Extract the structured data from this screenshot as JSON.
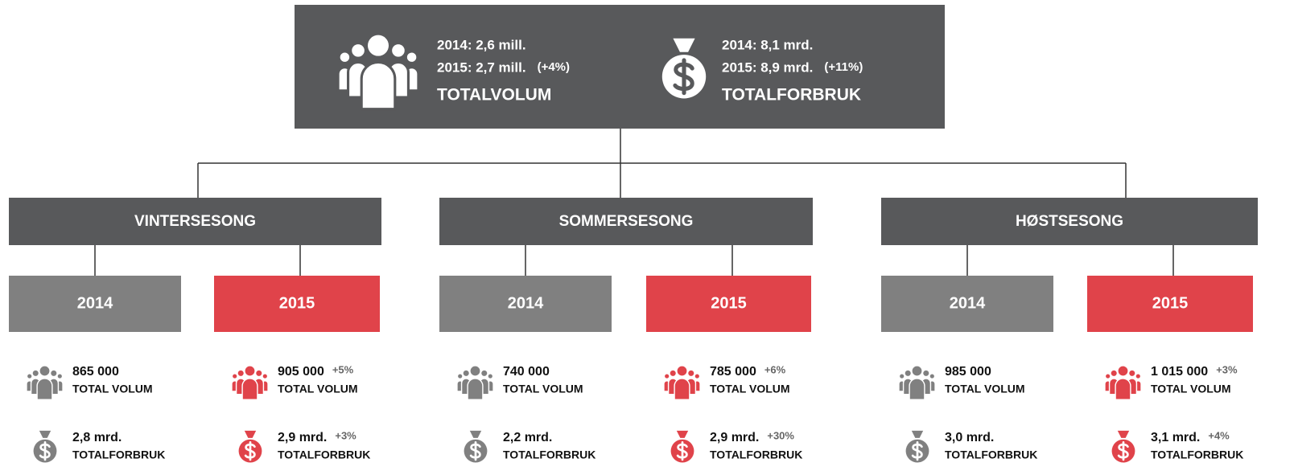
{
  "top": {
    "volume": {
      "line1": "2014: 2,6 mill.",
      "line2": "2015: 2,7 mill.",
      "change": "(+4%)",
      "label": "TOTALVOLUM"
    },
    "spend": {
      "line1": "2014: 8,1 mrd.",
      "line2": "2015: 8,9 mrd.",
      "change": "(+11%)",
      "label": "TOTALFORBRUK"
    }
  },
  "seasons": [
    {
      "name": "VINTERSESONG",
      "years": [
        {
          "year": "2014",
          "volume": "865 000",
          "volume_label": "TOTAL VOLUM",
          "spend": "2,8 mrd.",
          "spend_label": "TOTALFORBRUK"
        },
        {
          "year": "2015",
          "volume": "905 000",
          "volume_change": "+5%",
          "volume_label": "TOTAL VOLUM",
          "spend": "2,9 mrd.",
          "spend_change": "+3%",
          "spend_label": "TOTALFORBRUK"
        }
      ]
    },
    {
      "name": "SOMMERSESONG",
      "years": [
        {
          "year": "2014",
          "volume": "740 000",
          "volume_label": "TOTAL VOLUM",
          "spend": "2,2 mrd.",
          "spend_label": "TOTALFORBRUK"
        },
        {
          "year": "2015",
          "volume": "785 000",
          "volume_change": "+6%",
          "volume_label": "TOTAL VOLUM",
          "spend": "2,9 mrd.",
          "spend_change": "+30%",
          "spend_label": "TOTALFORBRUK"
        }
      ]
    },
    {
      "name": "HØSTSESONG",
      "years": [
        {
          "year": "2014",
          "volume": "985 000",
          "volume_label": "TOTAL VOLUM",
          "spend": "3,0 mrd.",
          "spend_label": "TOTALFORBRUK"
        },
        {
          "year": "2015",
          "volume": "1 015 000",
          "volume_change": "+3%",
          "volume_label": "TOTAL VOLUM",
          "spend": "3,1 mrd.",
          "spend_change": "+4%",
          "spend_label": "TOTALFORBRUK"
        }
      ]
    }
  ]
}
